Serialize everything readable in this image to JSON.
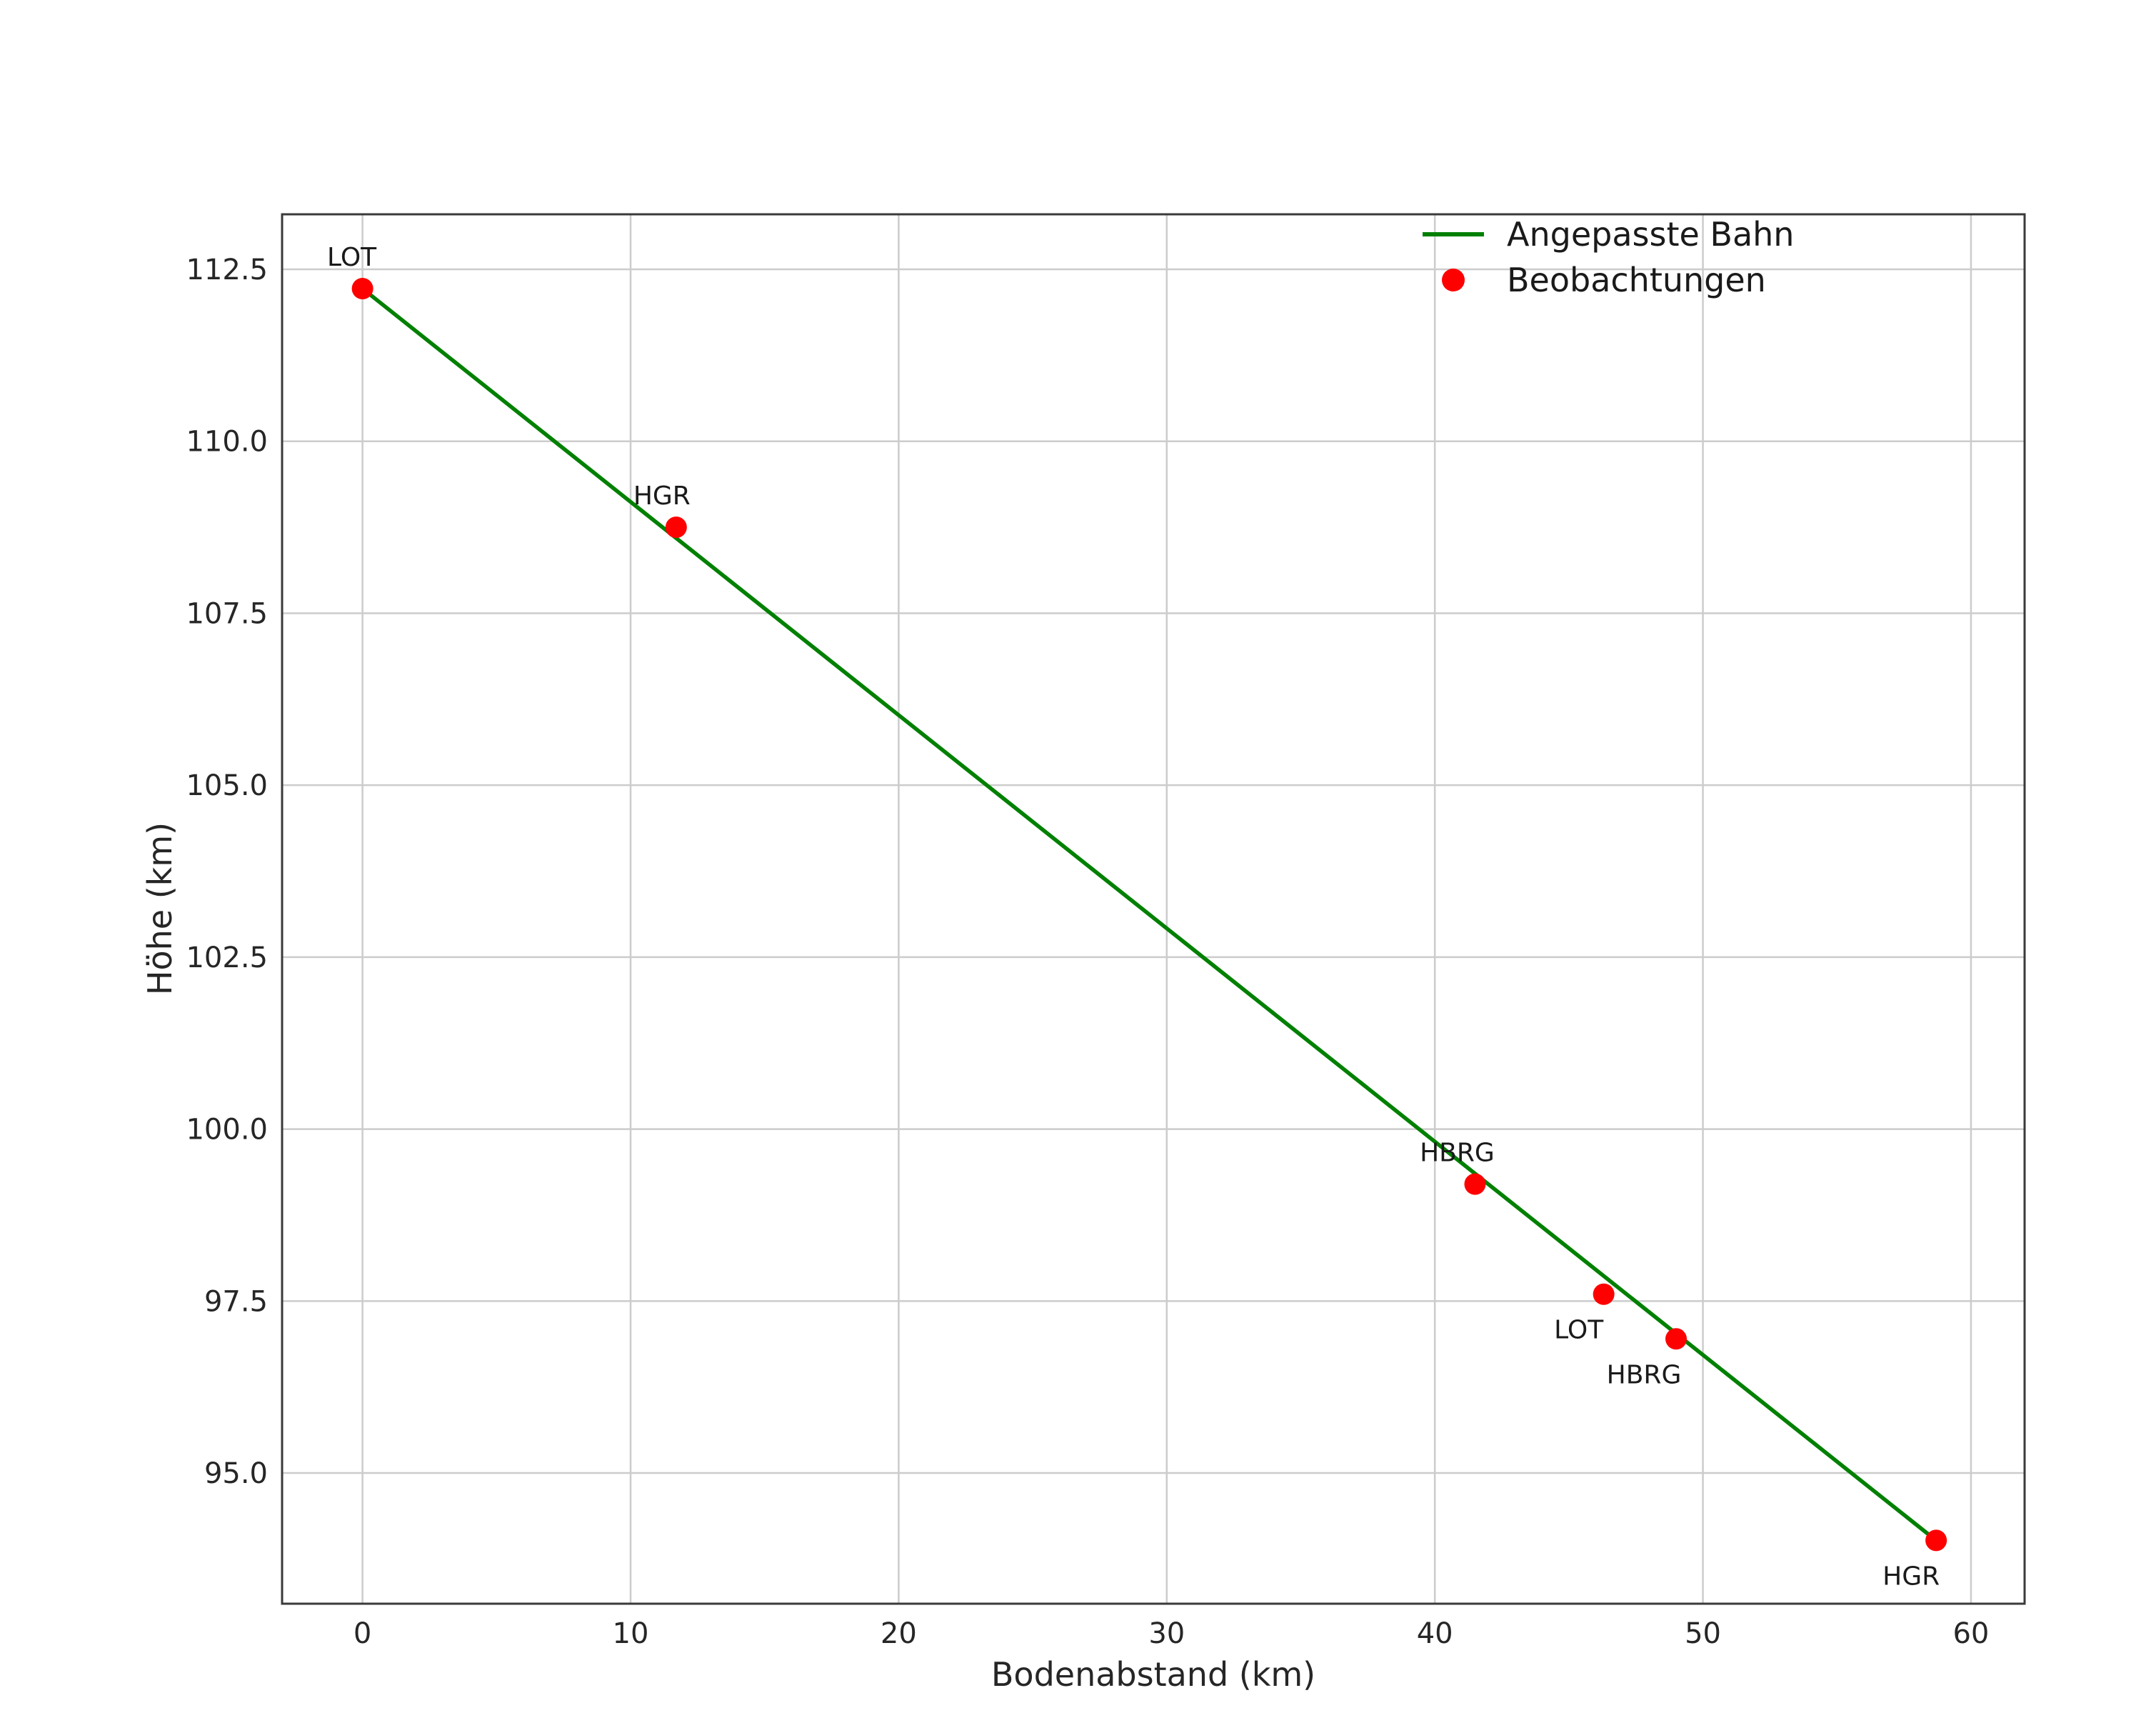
{
  "chart_data": {
    "type": "scatter",
    "title": "",
    "xlabel": "Bodenabstand (km)",
    "ylabel": "Höhe (km)",
    "xlim": [
      -3,
      62
    ],
    "ylim": [
      93.1,
      113.3
    ],
    "grid": true,
    "xticks": [
      {
        "v": 0,
        "label": "0"
      },
      {
        "v": 10,
        "label": "10"
      },
      {
        "v": 20,
        "label": "20"
      },
      {
        "v": 30,
        "label": "30"
      },
      {
        "v": 40,
        "label": "40"
      },
      {
        "v": 50,
        "label": "50"
      },
      {
        "v": 60,
        "label": "60"
      }
    ],
    "yticks": [
      {
        "v": 95.0,
        "label": "95.0"
      },
      {
        "v": 97.5,
        "label": "97.5"
      },
      {
        "v": 100.0,
        "label": "100.0"
      },
      {
        "v": 102.5,
        "label": "102.5"
      },
      {
        "v": 105.0,
        "label": "105.0"
      },
      {
        "v": 107.5,
        "label": "107.5"
      },
      {
        "v": 110.0,
        "label": "110.0"
      },
      {
        "v": 112.5,
        "label": "112.5"
      }
    ],
    "legend": {
      "position": "upper right",
      "entries": [
        {
          "label": "Angepasste Bahn",
          "type": "line",
          "color": "#008000"
        },
        {
          "label": "Beobachtungen",
          "type": "marker",
          "color": "#ff0000"
        }
      ]
    },
    "series": [
      {
        "name": "Angepasste Bahn",
        "type": "line",
        "color": "#008000",
        "points": [
          {
            "x": 0.0,
            "y": 112.22
          },
          {
            "x": 58.7,
            "y": 94.02
          }
        ]
      },
      {
        "name": "Beobachtungen",
        "type": "scatter",
        "color": "#ff0000",
        "points": [
          {
            "x": 0.0,
            "y": 112.22,
            "label": "LOT",
            "label_dx": -15,
            "label_dy": -32,
            "anchor": "middle"
          },
          {
            "x": 11.7,
            "y": 108.75,
            "label": "HGR",
            "label_dx": -20,
            "label_dy": -32,
            "anchor": "middle"
          },
          {
            "x": 41.5,
            "y": 99.2,
            "label": "HBRG",
            "label_dx": -25,
            "label_dy": -32,
            "anchor": "middle"
          },
          {
            "x": 46.3,
            "y": 97.6,
            "label": "LOT",
            "label_dx": -35,
            "label_dy": 62,
            "anchor": "middle"
          },
          {
            "x": 49.0,
            "y": 96.95,
            "label": "HBRG",
            "label_dx": -45,
            "label_dy": 62,
            "anchor": "middle"
          },
          {
            "x": 58.7,
            "y": 94.02,
            "label": "HGR",
            "label_dx": -35,
            "label_dy": 62,
            "anchor": "middle"
          }
        ]
      }
    ]
  }
}
